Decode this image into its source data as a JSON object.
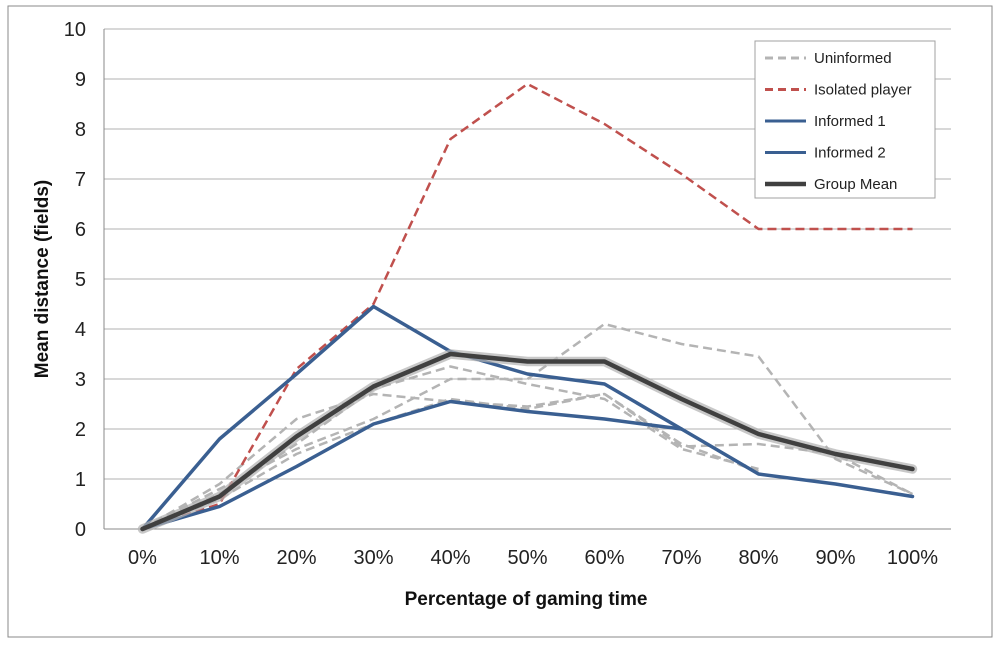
{
  "chart_data": {
    "type": "line",
    "xlabel": "Percentage of gaming time",
    "ylabel": "Mean distance (fields)",
    "categories": [
      "0%",
      "10%",
      "20%",
      "30%",
      "40%",
      "50%",
      "60%",
      "70%",
      "80%",
      "90%",
      "100%"
    ],
    "ylim": [
      0,
      10
    ],
    "yticks": [
      0,
      1,
      2,
      3,
      4,
      5,
      6,
      7,
      8,
      9,
      10
    ],
    "grid": true,
    "legend_position": "top-right",
    "legend": [
      {
        "label": "Uninformed",
        "color": "#b4b4b4",
        "style": "dashed"
      },
      {
        "label": "Isolated player",
        "color": "#c0504d",
        "style": "dashed"
      },
      {
        "label": "Informed 1",
        "color": "#3a5f91",
        "style": "solid"
      },
      {
        "label": "Informed 2",
        "color": "#3a5f91",
        "style": "solid"
      },
      {
        "label": "Group Mean",
        "color": "#404040",
        "style": "solid"
      }
    ],
    "series": [
      {
        "name": "Uninformed",
        "values": [
          0,
          0.9,
          2.2,
          2.7,
          2.55,
          2.45,
          2.7,
          1.65,
          1.7,
          1.5,
          0.7
        ],
        "color": "#b4b4b4",
        "style": "dashed",
        "width": 2.5
      },
      {
        "name": "Uninformed",
        "values": [
          0,
          0.7,
          1.7,
          2.8,
          3.25,
          2.9,
          2.6,
          1.6,
          1.2,
          null,
          null
        ],
        "color": "#b4b4b4",
        "style": "dashed",
        "width": 2.5
      },
      {
        "name": "Uninformed",
        "values": [
          0,
          0.8,
          1.6,
          2.2,
          3.0,
          3.0,
          4.1,
          3.7,
          3.45,
          1.4,
          0.7
        ],
        "color": "#b4b4b4",
        "style": "dashed",
        "width": 2.5
      },
      {
        "name": "Uninformed",
        "values": [
          0,
          0.6,
          1.5,
          2.1,
          2.6,
          2.4,
          2.7,
          1.7,
          1.15,
          null,
          null
        ],
        "color": "#b4b4b4",
        "style": "dashed",
        "width": 2.5
      },
      {
        "name": "Isolated player",
        "values": [
          0,
          0.5,
          3.2,
          4.5,
          7.8,
          8.9,
          8.1,
          7.1,
          6.0,
          6.0,
          6.0
        ],
        "color": "#c0504d",
        "style": "dashed",
        "width": 2.5
      },
      {
        "name": "Informed 1",
        "values": [
          0,
          1.8,
          3.1,
          4.45,
          3.55,
          3.1,
          2.9,
          2.0,
          null,
          null,
          null
        ],
        "color": "#3a5f91",
        "style": "solid",
        "width": 3.5
      },
      {
        "name": "Informed 2",
        "values": [
          0,
          0.45,
          1.25,
          2.1,
          2.55,
          2.35,
          2.2,
          2.0,
          1.1,
          0.9,
          0.65
        ],
        "color": "#3a5f91",
        "style": "solid",
        "width": 3.5
      },
      {
        "name": "Group Mean",
        "values": [
          0,
          0.65,
          1.85,
          2.85,
          3.5,
          3.35,
          3.35,
          2.6,
          1.9,
          1.5,
          1.2
        ],
        "color": "#404040",
        "style": "solid",
        "width": 4.5,
        "glow": "#b0b0b0"
      }
    ]
  }
}
